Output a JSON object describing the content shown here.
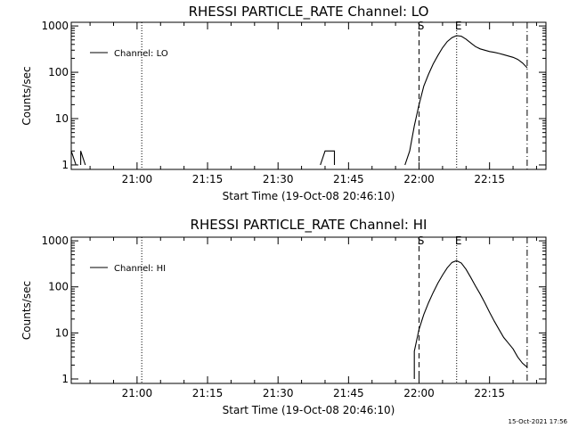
{
  "stamp": "15-Oct-2021 17:56",
  "chart_data": [
    {
      "type": "line",
      "title": "RHESSI PARTICLE_RATE Channel: LO",
      "xlabel": "Start Time (19-Oct-08 20:46:10)",
      "ylabel": "Counts/sec",
      "yscale": "log",
      "xlim": [
        "20:46",
        "22:27"
      ],
      "ylim": [
        0.8,
        1200
      ],
      "xticks": [
        "21:00",
        "21:15",
        "21:30",
        "21:45",
        "22:00",
        "22:15"
      ],
      "yticks": [
        {
          "v": 1,
          "label": "1"
        },
        {
          "v": 10,
          "label": "10"
        },
        {
          "v": 100,
          "label": "100"
        },
        {
          "v": 1000,
          "label": "1000"
        }
      ],
      "legend": {
        "position": "top-left",
        "label": "Channel: LO"
      },
      "markers": [
        {
          "time": "21:01",
          "style": "dotted",
          "label": ""
        },
        {
          "time": "22:00",
          "style": "dashed",
          "label": "S"
        },
        {
          "time": "22:08",
          "style": "dotted",
          "label": "E"
        },
        {
          "time": "22:23",
          "style": "dashdot",
          "label": ""
        }
      ],
      "series": [
        {
          "name": "Channel: LO",
          "segments": [
            [
              [
                "20:46",
                2
              ],
              [
                "20:47",
                1
              ]
            ],
            [
              [
                "20:48",
                1
              ],
              [
                "20:48",
                2
              ],
              [
                "20:49",
                1
              ]
            ],
            [
              [
                "21:39",
                1
              ],
              [
                "21:40",
                2
              ],
              [
                "21:42",
                2
              ],
              [
                "21:42",
                1
              ]
            ],
            [
              [
                "21:57",
                1
              ],
              [
                "21:58",
                2
              ],
              [
                "21:59",
                7
              ],
              [
                "22:00",
                20
              ],
              [
                "22:01",
                50
              ],
              [
                "22:02",
                90
              ],
              [
                "22:03",
                150
              ],
              [
                "22:04",
                230
              ],
              [
                "22:05",
                340
              ],
              [
                "22:06",
                460
              ],
              [
                "22:07",
                560
              ],
              [
                "22:08",
                620
              ],
              [
                "22:09",
                600
              ],
              [
                "22:10",
                520
              ],
              [
                "22:11",
                430
              ],
              [
                "22:12",
                360
              ],
              [
                "22:13",
                320
              ],
              [
                "22:14",
                300
              ],
              [
                "22:15",
                280
              ],
              [
                "22:16",
                270
              ],
              [
                "22:17",
                255
              ],
              [
                "22:18",
                240
              ],
              [
                "22:19",
                225
              ],
              [
                "22:20",
                210
              ],
              [
                "22:21",
                190
              ],
              [
                "22:22",
                160
              ],
              [
                "22:23",
                125
              ]
            ]
          ]
        }
      ]
    },
    {
      "type": "line",
      "title": "RHESSI PARTICLE_RATE Channel: HI",
      "xlabel": "Start Time (19-Oct-08 20:46:10)",
      "ylabel": "Counts/sec",
      "yscale": "log",
      "xlim": [
        "20:46",
        "22:27"
      ],
      "ylim": [
        0.8,
        1200
      ],
      "xticks": [
        "21:00",
        "21:15",
        "21:30",
        "21:45",
        "22:00",
        "22:15"
      ],
      "yticks": [
        {
          "v": 1,
          "label": "1"
        },
        {
          "v": 10,
          "label": "10"
        },
        {
          "v": 100,
          "label": "100"
        },
        {
          "v": 1000,
          "label": "1000"
        }
      ],
      "legend": {
        "position": "top-left",
        "label": "Channel: HI"
      },
      "markers": [
        {
          "time": "21:01",
          "style": "dotted",
          "label": ""
        },
        {
          "time": "22:00",
          "style": "dashed",
          "label": "S"
        },
        {
          "time": "22:08",
          "style": "dotted",
          "label": "E"
        },
        {
          "time": "22:23",
          "style": "dashdot",
          "label": ""
        }
      ],
      "series": [
        {
          "name": "Channel: HI",
          "segments": [
            [
              [
                "21:59",
                1
              ],
              [
                "21:59",
                4
              ],
              [
                "22:00",
                12
              ],
              [
                "22:01",
                25
              ],
              [
                "22:02",
                45
              ],
              [
                "22:03",
                75
              ],
              [
                "22:04",
                120
              ],
              [
                "22:05",
                180
              ],
              [
                "22:06",
                260
              ],
              [
                "22:07",
                340
              ],
              [
                "22:08",
                370
              ],
              [
                "22:09",
                330
              ],
              [
                "22:10",
                240
              ],
              [
                "22:11",
                160
              ],
              [
                "22:12",
                105
              ],
              [
                "22:13",
                70
              ],
              [
                "22:14",
                45
              ],
              [
                "22:15",
                28
              ],
              [
                "22:16",
                18
              ],
              [
                "22:17",
                12
              ],
              [
                "22:18",
                8
              ],
              [
                "22:19",
                6
              ],
              [
                "22:20",
                4.5
              ],
              [
                "22:21",
                3
              ],
              [
                "22:22",
                2.2
              ],
              [
                "22:23",
                1.8
              ]
            ]
          ]
        }
      ]
    }
  ]
}
